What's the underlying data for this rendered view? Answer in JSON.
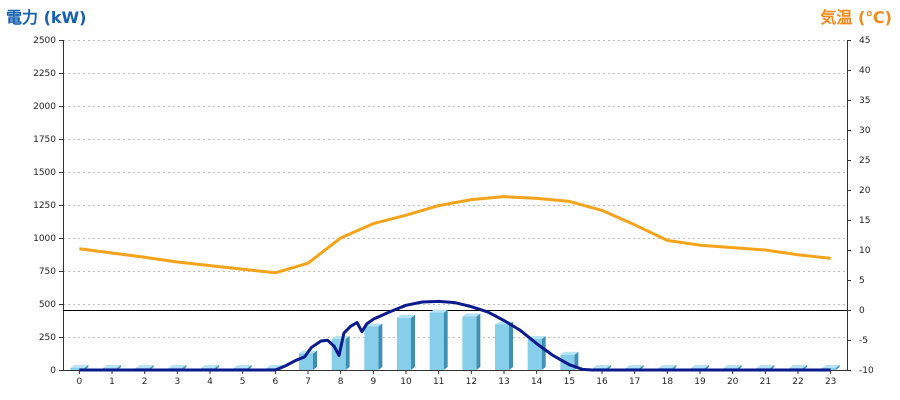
{
  "chart_data": {
    "type": "bar+line",
    "left_axis_title": "電力 (kW)",
    "right_axis_title": "気温 (℃)",
    "y_left": {
      "min": 0,
      "max": 2500,
      "ticks": [
        0,
        250,
        500,
        750,
        1000,
        1250,
        1500,
        1750,
        2000,
        2250,
        2500
      ]
    },
    "y_right": {
      "min": -10,
      "max": 45,
      "ticks": [
        -10,
        -5,
        0,
        5,
        10,
        15,
        20,
        25,
        30,
        35,
        40,
        45
      ]
    },
    "x": [
      0,
      1,
      2,
      3,
      4,
      5,
      6,
      7,
      8,
      9,
      10,
      11,
      12,
      13,
      14,
      15,
      16,
      17,
      18,
      19,
      20,
      21,
      22,
      23
    ],
    "grid": "horizontal-dashed",
    "colors": {
      "bar": "#87ceeb",
      "power_line": "#0a1a8c",
      "temperature_line": "#f5a31a",
      "left_title": "#1560b0",
      "right_title": "#f08a1c"
    },
    "series": [
      {
        "type": "bar",
        "axis": "left",
        "values": [
          15,
          15,
          15,
          15,
          15,
          15,
          15,
          125,
          235,
          330,
          395,
          435,
          405,
          345,
          235,
          115,
          15,
          15,
          15,
          15,
          15,
          15,
          15,
          15
        ]
      },
      {
        "type": "line",
        "axis": "left",
        "points": [
          [
            0,
            0
          ],
          [
            1,
            0
          ],
          [
            2,
            0
          ],
          [
            3,
            0
          ],
          [
            4,
            0
          ],
          [
            5,
            0
          ],
          [
            6,
            0
          ],
          [
            6.3,
            30
          ],
          [
            6.6,
            70
          ],
          [
            6.9,
            100
          ],
          [
            7.1,
            170
          ],
          [
            7.4,
            220
          ],
          [
            7.6,
            225
          ],
          [
            7.8,
            180
          ],
          [
            7.95,
            110
          ],
          [
            8.1,
            280
          ],
          [
            8.3,
            330
          ],
          [
            8.5,
            360
          ],
          [
            8.65,
            290
          ],
          [
            8.8,
            350
          ],
          [
            9,
            385
          ],
          [
            9.5,
            440
          ],
          [
            10,
            490
          ],
          [
            10.5,
            515
          ],
          [
            11,
            520
          ],
          [
            11.5,
            510
          ],
          [
            12,
            480
          ],
          [
            12.5,
            440
          ],
          [
            13,
            375
          ],
          [
            13.5,
            300
          ],
          [
            14,
            200
          ],
          [
            14.5,
            110
          ],
          [
            15,
            40
          ],
          [
            15.4,
            5
          ],
          [
            15.7,
            0
          ],
          [
            16,
            0
          ],
          [
            17,
            0
          ],
          [
            18,
            0
          ],
          [
            19,
            0
          ],
          [
            20,
            0
          ],
          [
            21,
            0
          ],
          [
            22,
            0
          ],
          [
            23,
            0
          ]
        ]
      },
      {
        "type": "line",
        "axis": "right",
        "values": [
          10.2,
          9.5,
          8.8,
          8.0,
          7.4,
          6.8,
          6.2,
          7.8,
          12.0,
          14.4,
          15.8,
          17.4,
          18.4,
          18.9,
          18.6,
          18.1,
          16.6,
          14.2,
          11.6,
          10.8,
          10.4,
          10.0,
          9.2,
          8.6
        ]
      }
    ]
  }
}
